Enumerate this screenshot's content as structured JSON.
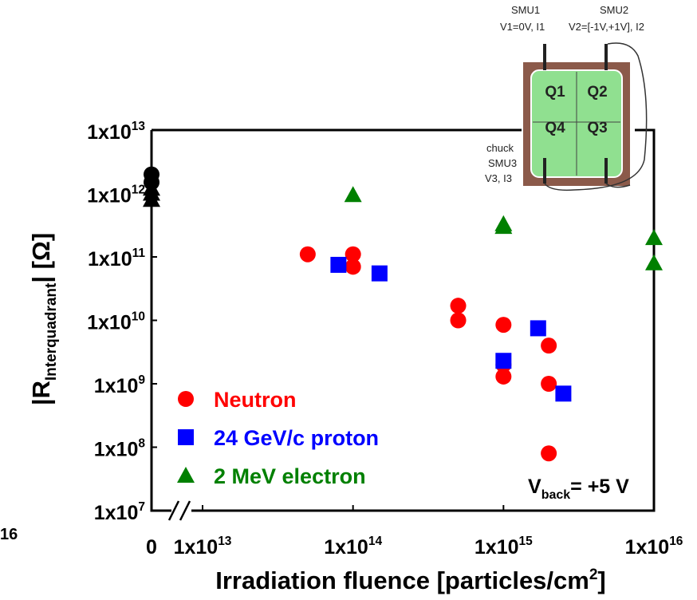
{
  "chart_data": {
    "type": "scatter",
    "xscale": "log",
    "yscale": "log",
    "xbreak": true,
    "xlim": [
      0,
      1e+16
    ],
    "ylim": [
      10000000.0,
      10000000000000.0
    ],
    "xticks": [
      0,
      {
        "value": 10000000000000.0,
        "label": "1x10",
        "exponent": "13"
      },
      {
        "value": 100000000000000.0,
        "label": "1x10",
        "exponent": "14"
      },
      {
        "value": 1000000000000000.0,
        "label": "1x10",
        "exponent": "15"
      },
      {
        "value": 1e+16,
        "label": "1x10",
        "exponent": "16"
      }
    ],
    "yticks": [
      {
        "value": 10000000.0,
        "label": "1x10",
        "exponent": "7"
      },
      {
        "value": 100000000.0,
        "label": "1x10",
        "exponent": "8"
      },
      {
        "value": 1000000000.0,
        "label": "1x10",
        "exponent": "9"
      },
      {
        "value": 10000000000.0,
        "label": "1x10",
        "exponent": "10"
      },
      {
        "value": 100000000000.0,
        "label": "1x10",
        "exponent": "11"
      },
      {
        "value": 1000000000000.0,
        "label": "1x10",
        "exponent": "12"
      },
      {
        "value": 10000000000000.0,
        "label": "1x10",
        "exponent": "13"
      }
    ],
    "xlabel": [
      "Irradiation fluence [particles/cm",
      "2",
      "]"
    ],
    "ylabel": [
      "|R",
      "Interquadrant",
      "| [Ω]"
    ],
    "annotation": [
      "V",
      "back",
      "= +5 V"
    ],
    "cut_label": "16",
    "series": [
      {
        "name": "Neutron",
        "color": "#ff0000",
        "marker": "circle",
        "x": [
          50000000000000.0,
          100000000000000.0,
          100000000000000.0,
          500000000000000.0,
          500000000000000.0,
          1000000000000000.0,
          1000000000000000.0,
          1000000000000000.0,
          2000000000000000.0,
          2000000000000000.0,
          2000000000000000.0
        ],
        "values": [
          110000000000.0,
          110000000000.0,
          70000000000.0,
          17000000000.0,
          10000000000.0,
          8500000000.0,
          2000000000.0,
          1300000000.0,
          4000000000.0,
          1000000000.0,
          80000000.0
        ]
      },
      {
        "name": "24 GeV/c proton",
        "color": "#0000ff",
        "marker": "square",
        "x": [
          80000000000000.0,
          150000000000000.0,
          1000000000000000.0,
          1700000000000000.0,
          2500000000000000.0
        ],
        "values": [
          75000000000.0,
          55000000000.0,
          2300000000.0,
          7500000000.0,
          700000000.0
        ]
      },
      {
        "name": "2 MeV electron",
        "color": "#008000",
        "marker": "triangle",
        "x": [
          100000000000000.0,
          1000000000000000.0,
          1000000000000000.0,
          1e+16,
          1e+16
        ],
        "values": [
          950000000000.0,
          330000000000.0,
          300000000000.0,
          200000000000.0,
          80000000000.0
        ]
      },
      {
        "color": "#000000",
        "marker": "circle",
        "x": [
          0,
          0
        ],
        "values": [
          2000000000000.0,
          1500000000000.0
        ]
      },
      {
        "color": "#000000",
        "marker": "triangle",
        "x": [
          0,
          0,
          0
        ],
        "values": [
          1200000000000.0,
          1000000000000.0,
          800000000000.0
        ]
      }
    ]
  },
  "inset": {
    "smu1": "SMU1",
    "smu1_set": "V1=0V, I1",
    "smu2": "SMU2",
    "smu2_set": "V2=[-1V,+1V], I2",
    "q1": "Q1",
    "q2": "Q2",
    "q4": "Q4",
    "q3": "Q3",
    "chuck": "chuck",
    "smu3": "SMU3",
    "smu3_set": "V3, I3"
  }
}
